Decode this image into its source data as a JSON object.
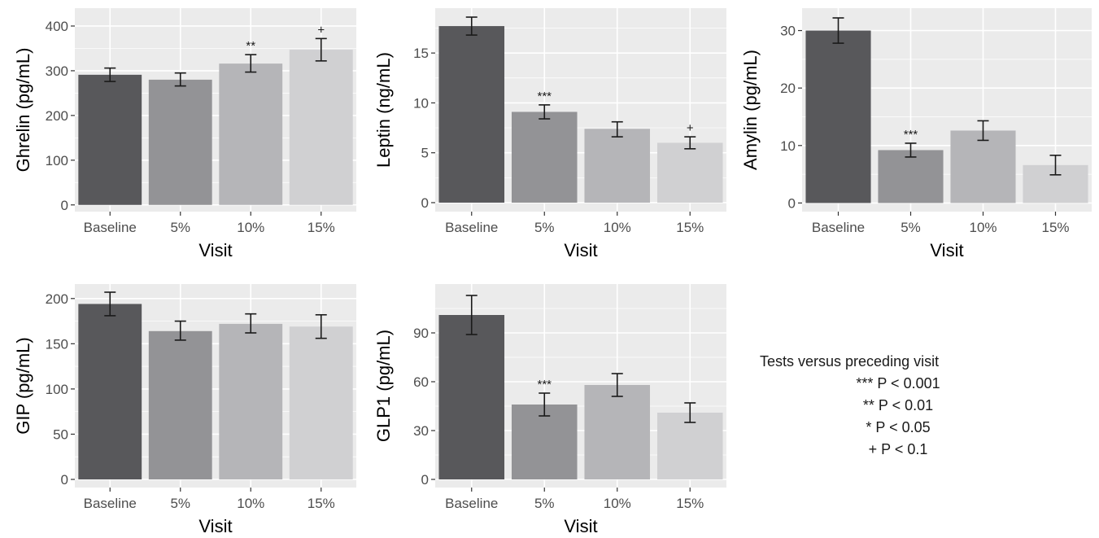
{
  "chart_data": [
    {
      "type": "bar",
      "ylabel": "Ghrelin (pg/mL)",
      "xlabel": "Visit",
      "categories": [
        "Baseline",
        "5%",
        "10%",
        "15%"
      ],
      "values": [
        291,
        280,
        316,
        347
      ],
      "error_low": [
        276,
        266,
        297,
        322
      ],
      "error_high": [
        306,
        295,
        336,
        372
      ],
      "significance": [
        "",
        "",
        "**",
        "+"
      ],
      "yticks": [
        0,
        100,
        200,
        300,
        400
      ],
      "ylim": [
        -15,
        440
      ],
      "bar_colors": [
        "#58585b",
        "#939396",
        "#b5b5b8",
        "#d0d0d2"
      ]
    },
    {
      "type": "bar",
      "ylabel": "Leptin (ng/mL)",
      "xlabel": "Visit",
      "categories": [
        "Baseline",
        "5%",
        "10%",
        "15%"
      ],
      "values": [
        17.7,
        9.1,
        7.4,
        6.0
      ],
      "error_low": [
        16.8,
        8.4,
        6.6,
        5.4
      ],
      "error_high": [
        18.6,
        9.8,
        8.1,
        6.6
      ],
      "significance": [
        "",
        "***",
        "",
        "+"
      ],
      "yticks": [
        0,
        5,
        10,
        15
      ],
      "ylim": [
        -0.9,
        19.5
      ],
      "bar_colors": [
        "#58585b",
        "#939396",
        "#b5b5b8",
        "#d0d0d2"
      ]
    },
    {
      "type": "bar",
      "ylabel": "Amylin (pg/mL)",
      "xlabel": "Visit",
      "categories": [
        "Baseline",
        "5%",
        "10%",
        "15%"
      ],
      "values": [
        30.0,
        9.2,
        12.6,
        6.6
      ],
      "error_low": [
        27.8,
        8.0,
        10.9,
        4.9
      ],
      "error_high": [
        32.2,
        10.4,
        14.3,
        8.3
      ],
      "significance": [
        "",
        "***",
        "",
        ""
      ],
      "yticks": [
        0,
        10,
        20,
        30
      ],
      "ylim": [
        -1.5,
        33.9
      ],
      "bar_colors": [
        "#58585b",
        "#939396",
        "#b5b5b8",
        "#d0d0d2"
      ]
    },
    {
      "type": "bar",
      "ylabel": "GIP (pg/mL)",
      "xlabel": "Visit",
      "categories": [
        "Baseline",
        "5%",
        "10%",
        "15%"
      ],
      "values": [
        194,
        164,
        172,
        169
      ],
      "error_low": [
        181,
        154,
        162,
        156
      ],
      "error_high": [
        207,
        175,
        183,
        182
      ],
      "significance": [
        "",
        "",
        "",
        ""
      ],
      "yticks": [
        0,
        50,
        100,
        150,
        200
      ],
      "ylim": [
        -9,
        216
      ],
      "bar_colors": [
        "#58585b",
        "#939396",
        "#b5b5b8",
        "#d0d0d2"
      ]
    },
    {
      "type": "bar",
      "ylabel": "GLP1 (pg/mL)",
      "xlabel": "Visit",
      "categories": [
        "Baseline",
        "5%",
        "10%",
        "15%"
      ],
      "values": [
        101,
        46,
        58,
        41
      ],
      "error_low": [
        89,
        39,
        51,
        35
      ],
      "error_high": [
        113,
        53,
        65,
        47
      ],
      "significance": [
        "",
        "***",
        "",
        ""
      ],
      "yticks": [
        0,
        30,
        60,
        90
      ],
      "ylim": [
        -5,
        120
      ],
      "bar_colors": [
        "#58585b",
        "#939396",
        "#b5b5b8",
        "#d0d0d2"
      ]
    }
  ],
  "legend_note": {
    "title": "Tests versus preceding visit",
    "lines": [
      "*** P < 0.001",
      "** P < 0.01",
      "* P < 0.05",
      "+ P < 0.1"
    ]
  }
}
